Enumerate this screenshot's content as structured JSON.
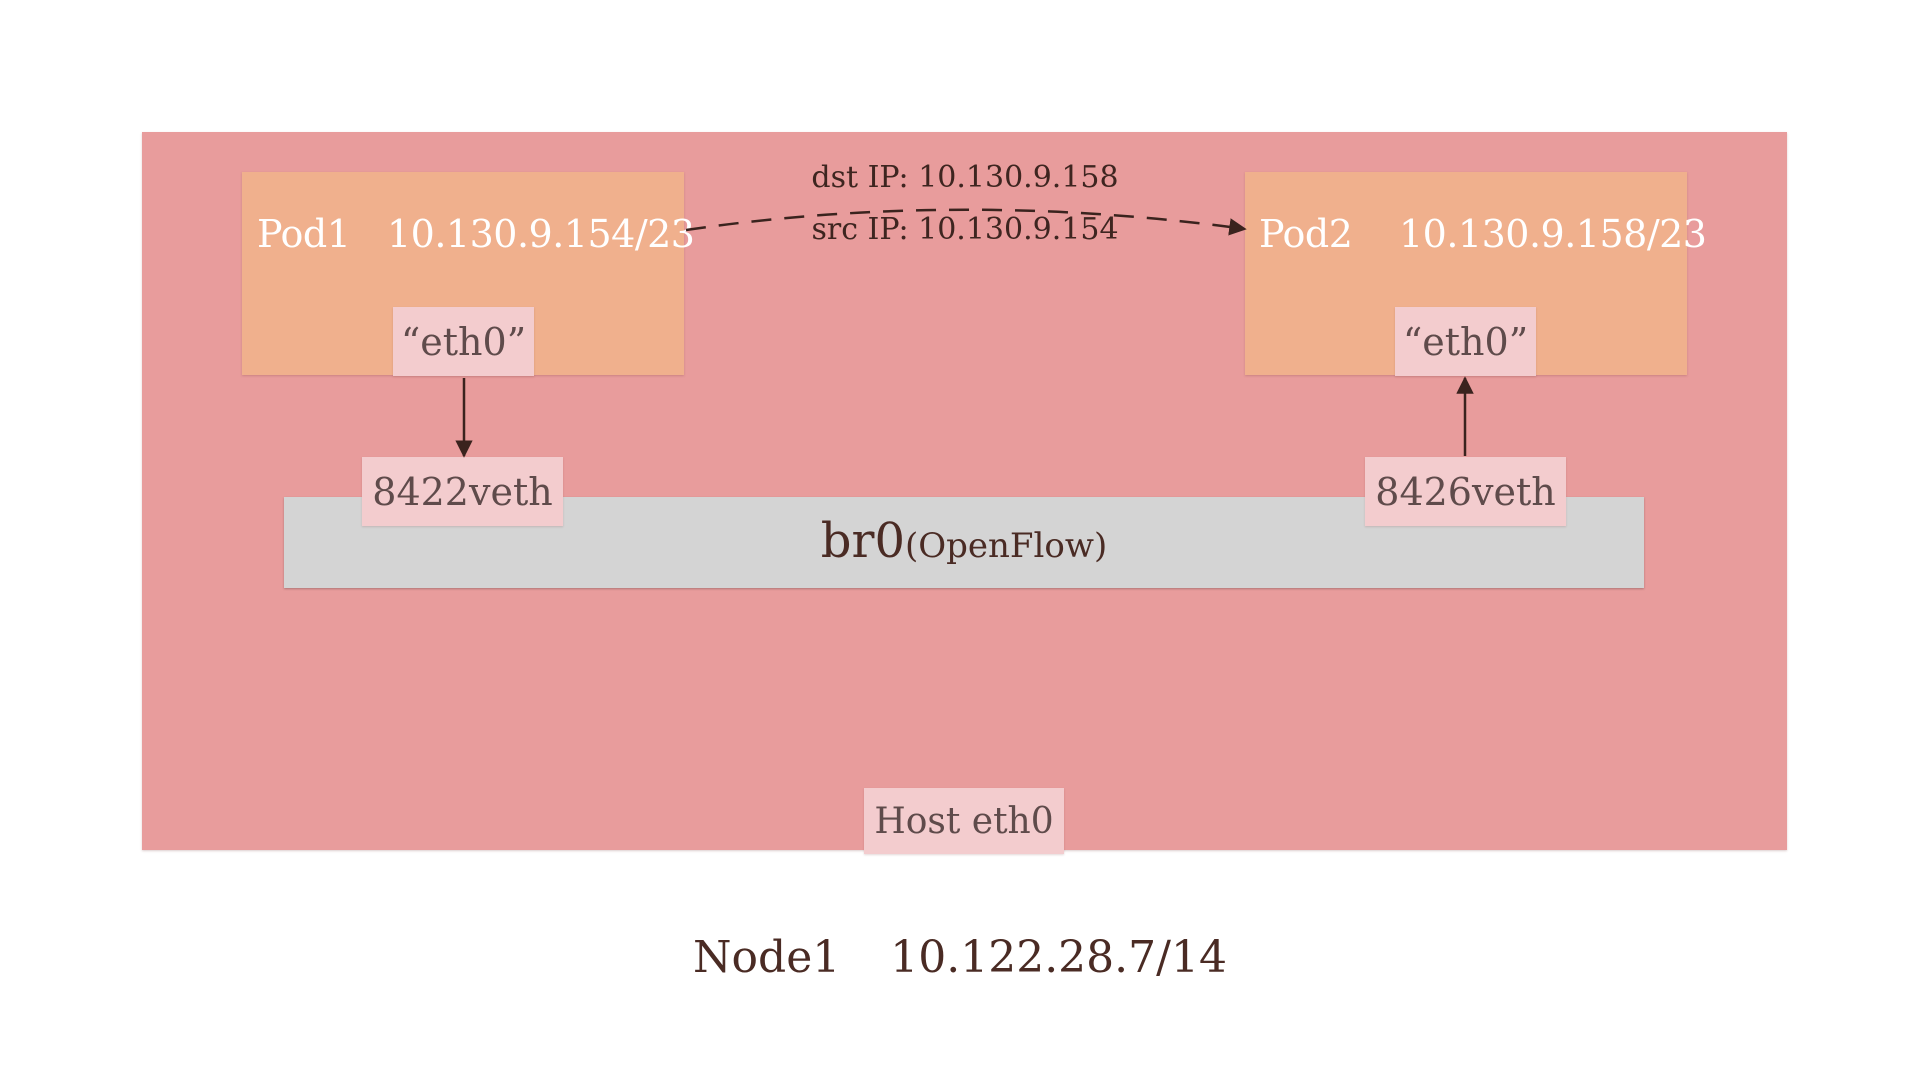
{
  "node": {
    "name": "Node1",
    "ip": "10.122.28.7/14",
    "host_interface": "Host eth0"
  },
  "pods": [
    {
      "name": "Pod1",
      "ip": "10.130.9.154/23",
      "interface": "“eth0”",
      "veth": "8422veth"
    },
    {
      "name": "Pod2",
      "ip": "10.130.9.158/23",
      "interface": "“eth0”",
      "veth": "8426veth"
    }
  ],
  "bridge": {
    "name": "br0",
    "type": "(OpenFlow)"
  },
  "packet": {
    "dst_label": "dst IP: 10.130.9.158",
    "src_label": "src IP: 10.130.9.154"
  },
  "colors": {
    "node_background": "#e89c9c",
    "pod_background": "#f0b08d",
    "interface_background": "#f3ccce",
    "bridge_background": "#d4d4d4",
    "arrow": "#3a231e",
    "text_dark": "#4a2b24"
  }
}
